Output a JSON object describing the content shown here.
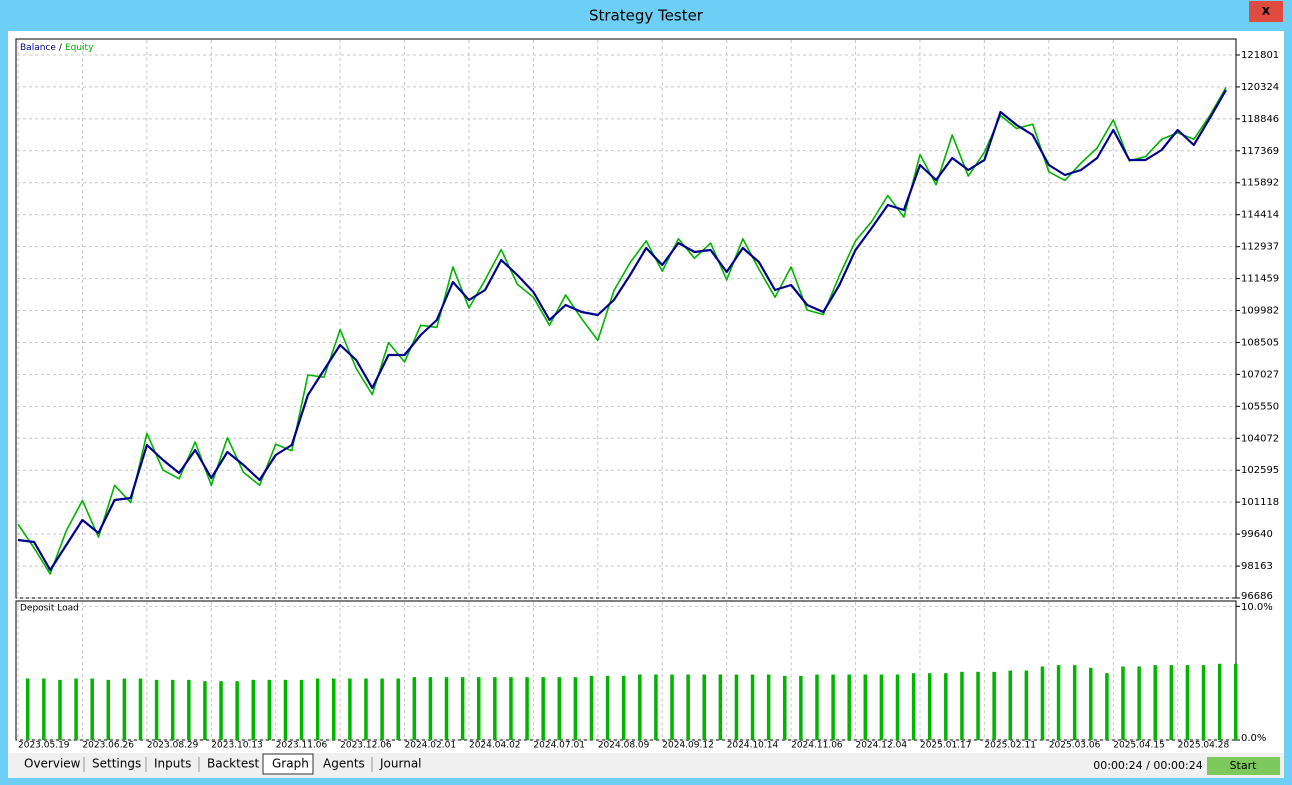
{
  "window": {
    "title": "Strategy Tester",
    "close": "x"
  },
  "chart_data": [
    {
      "type": "line",
      "legend_separator": "/",
      "categories": [
        "2023.05.19",
        null,
        null,
        null,
        "2023.06.26",
        null,
        null,
        null,
        "2023.08.29",
        null,
        null,
        null,
        "2023.10.13",
        null,
        null,
        null,
        "2023.11.06",
        null,
        null,
        null,
        "2023.12.06",
        null,
        null,
        null,
        "2024.02.01",
        null,
        null,
        null,
        "2024.04.02",
        null,
        null,
        null,
        "2024.07.01",
        null,
        null,
        null,
        "2024.08.09",
        null,
        null,
        null,
        "2024.09.12",
        null,
        null,
        null,
        "2024.10.14",
        null,
        null,
        null,
        "2024.11.06",
        null,
        null,
        null,
        "2024.12.04",
        null,
        null,
        null,
        "2025.01.17",
        null,
        null,
        null,
        "2025.02.11",
        null,
        null,
        null,
        "2025.03.06",
        null,
        null,
        null,
        "2025.04.15",
        null,
        null,
        null,
        "2025.04.28",
        null,
        null,
        null
      ],
      "series": [
        {
          "name": "Balance",
          "color": "#00008b",
          "values": [
            99370,
            99277,
            97982,
            99138,
            100295,
            99693,
            101220,
            101312,
            103763,
            103070,
            102468,
            103532,
            102237,
            103440,
            102838,
            102145,
            103301,
            103763,
            106076,
            107232,
            108388,
            107695,
            106400,
            107926,
            107926,
            108851,
            109545,
            111302,
            110470,
            110932,
            112320,
            111626,
            110840,
            109545,
            110238,
            109915,
            109776,
            110470,
            111626,
            112875,
            112088,
            113106,
            112690,
            112782,
            111765,
            112875,
            112227,
            110932,
            111163,
            110238,
            109915,
            111163,
            112782,
            113800,
            114863,
            114632,
            116713,
            116020,
            117037,
            116482,
            116945,
            119165,
            118563,
            118101,
            116713,
            116251,
            116482,
            117037,
            118332,
            116945,
            116945,
            117407,
            118332,
            117638,
            118887,
            120182
          ]
        },
        {
          "name": "Equity",
          "color": "#00b400",
          "values": [
            100100,
            99000,
            97800,
            99800,
            101200,
            99500,
            101900,
            101100,
            104300,
            102600,
            102200,
            103900,
            101900,
            104100,
            102500,
            101900,
            103800,
            103500,
            107000,
            106900,
            109100,
            107300,
            106100,
            108500,
            107600,
            109300,
            109200,
            112000,
            110100,
            111400,
            112800,
            111200,
            110600,
            109300,
            110700,
            109600,
            108600,
            110900,
            112200,
            113200,
            111800,
            113300,
            112400,
            113100,
            111400,
            113300,
            111900,
            110600,
            112000,
            110000,
            109800,
            111600,
            113200,
            114100,
            115300,
            114300,
            117200,
            115800,
            118100,
            116200,
            117300,
            119000,
            118400,
            118600,
            116400,
            116000,
            116800,
            117500,
            118800,
            116900,
            117100,
            117900,
            118200,
            117900,
            119000,
            120300
          ]
        }
      ],
      "ylim": [
        96686,
        122540
      ],
      "yticks": [
        121801,
        120324,
        118846,
        117369,
        115892,
        114414,
        112937,
        111459,
        109982,
        108505,
        107027,
        105550,
        104072,
        102595,
        101118,
        99640,
        98163,
        96686
      ],
      "grid": true
    },
    {
      "type": "bar",
      "title": "Deposit Load",
      "color": "#00b400",
      "values": [
        4.6,
        4.6,
        4.5,
        4.6,
        4.6,
        4.5,
        4.6,
        4.6,
        4.5,
        4.5,
        4.5,
        4.4,
        4.4,
        4.4,
        4.5,
        4.5,
        4.5,
        4.5,
        4.6,
        4.6,
        4.6,
        4.6,
        4.6,
        4.6,
        4.7,
        4.7,
        4.7,
        4.7,
        4.7,
        4.7,
        4.7,
        4.7,
        4.7,
        4.7,
        4.7,
        4.8,
        4.8,
        4.8,
        4.9,
        4.9,
        4.9,
        4.9,
        4.9,
        4.9,
        4.9,
        4.9,
        4.9,
        4.8,
        4.8,
        4.9,
        4.9,
        4.9,
        4.9,
        4.9,
        4.9,
        5.0,
        5.0,
        5.0,
        5.1,
        5.1,
        5.1,
        5.2,
        5.2,
        5.5,
        5.6,
        5.6,
        5.4,
        5.0,
        5.5,
        5.5,
        5.6,
        5.6,
        5.6,
        5.6,
        5.7,
        5.7
      ],
      "ylim": [
        0,
        10.4
      ],
      "yticks": [
        {
          "value": 0,
          "label": "0.0%"
        },
        {
          "value": 10,
          "label": "10.0%"
        }
      ],
      "grid": true
    }
  ],
  "tabs": [
    "Overview",
    "Settings",
    "Inputs",
    "Backtest",
    "Graph",
    "Agents",
    "Journal"
  ],
  "active_tab": 4,
  "status": {
    "time": "00:00:24 / 00:00:24",
    "button": "Start"
  }
}
